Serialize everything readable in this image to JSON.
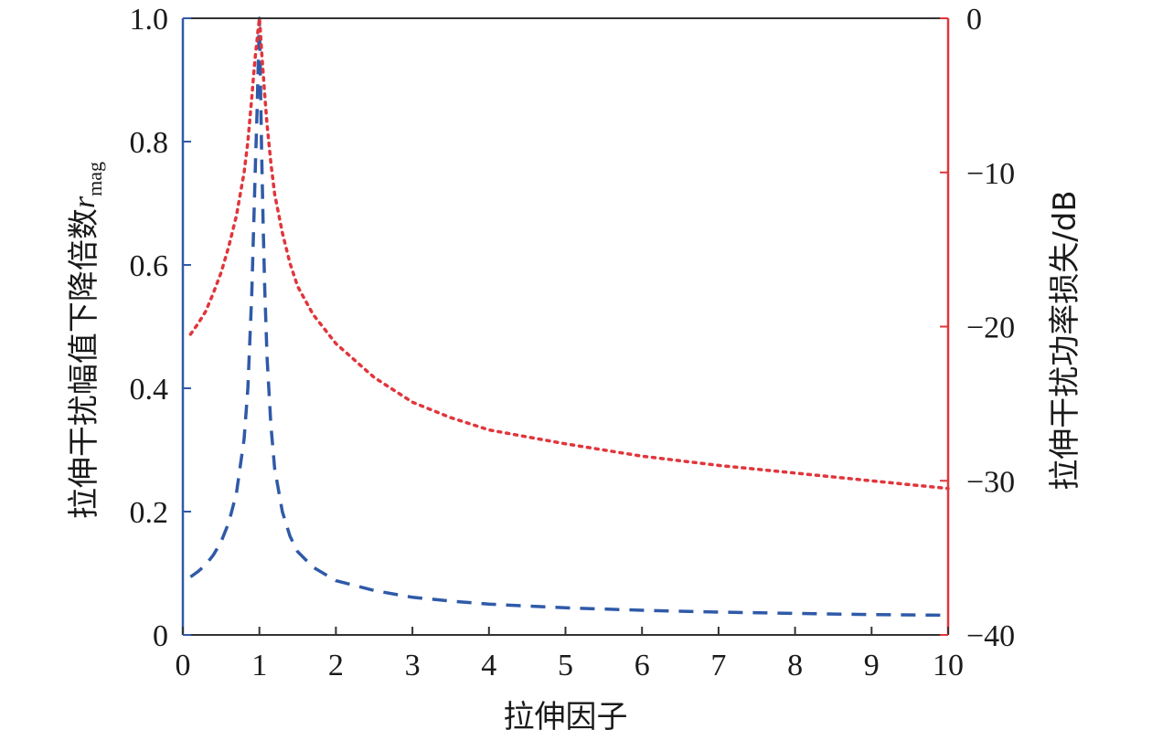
{
  "chart_data": {
    "type": "line",
    "title": "",
    "xlabel": "拉伸因子",
    "ylabel_left": {
      "text": "拉伸干扰幅值下降倍数",
      "symbol": "r",
      "subscript": "mag"
    },
    "ylabel_right": "拉伸干扰功率损失/dB",
    "xlim": [
      0,
      10
    ],
    "ylim_left": [
      0,
      1.0
    ],
    "ylim_right": [
      -40,
      0
    ],
    "x_ticks": [
      "0",
      "1",
      "2",
      "3",
      "4",
      "5",
      "6",
      "7",
      "8",
      "9",
      "10"
    ],
    "y_left_ticks": [
      "0",
      "0.2",
      "0.4",
      "0.6",
      "0.8",
      "1.0"
    ],
    "y_right_ticks": [
      "−40",
      "−30",
      "−20",
      "−10",
      "0"
    ],
    "grid": false,
    "legend": "none",
    "colors": {
      "left_axis": "#2f5aa8",
      "right_axis": "#e0363c",
      "frame": "#333333"
    },
    "series": [
      {
        "axis": "left",
        "style": "dashed",
        "color": "#2f5aa8",
        "x": [
          0.1,
          0.2,
          0.3,
          0.4,
          0.5,
          0.6,
          0.7,
          0.8,
          0.85,
          0.9,
          0.93,
          0.95,
          0.97,
          0.98,
          0.99,
          1.0,
          1.01,
          1.02,
          1.03,
          1.05,
          1.07,
          1.1,
          1.15,
          1.2,
          1.3,
          1.4,
          1.5,
          1.7,
          2.0,
          2.5,
          3.0,
          3.5,
          4.0,
          5.0,
          6.0,
          7.0,
          8.0,
          9.0,
          10.0
        ],
        "y": [
          0.094,
          0.103,
          0.114,
          0.13,
          0.151,
          0.182,
          0.23,
          0.318,
          0.4,
          0.55,
          0.68,
          0.77,
          0.85,
          0.9,
          0.95,
          1.0,
          0.93,
          0.85,
          0.78,
          0.66,
          0.56,
          0.45,
          0.34,
          0.27,
          0.2,
          0.16,
          0.135,
          0.11,
          0.088,
          0.072,
          0.061,
          0.055,
          0.05,
          0.044,
          0.04,
          0.037,
          0.035,
          0.033,
          0.032
        ]
      },
      {
        "axis": "right",
        "style": "dotted",
        "color": "#e0363c",
        "x": [
          0.1,
          0.2,
          0.3,
          0.4,
          0.5,
          0.6,
          0.7,
          0.8,
          0.85,
          0.9,
          0.93,
          0.95,
          0.97,
          0.98,
          0.99,
          1.0,
          1.01,
          1.02,
          1.03,
          1.05,
          1.07,
          1.1,
          1.15,
          1.2,
          1.3,
          1.4,
          1.5,
          1.7,
          2.0,
          2.5,
          3.0,
          3.5,
          4.0,
          5.0,
          6.0,
          7.0,
          8.0,
          9.0,
          10.0
        ],
        "y": [
          -20.5,
          -19.8,
          -19.0,
          -17.8,
          -16.5,
          -14.8,
          -12.8,
          -10.0,
          -8.0,
          -5.2,
          -3.4,
          -2.3,
          -1.4,
          -0.9,
          -0.45,
          0.0,
          -0.6,
          -1.4,
          -2.2,
          -3.6,
          -5.0,
          -6.9,
          -9.4,
          -11.4,
          -13.9,
          -15.9,
          -17.4,
          -19.2,
          -21.1,
          -23.3,
          -24.9,
          -25.9,
          -26.7,
          -27.6,
          -28.4,
          -29.0,
          -29.5,
          -30.0,
          -30.5
        ]
      }
    ]
  }
}
